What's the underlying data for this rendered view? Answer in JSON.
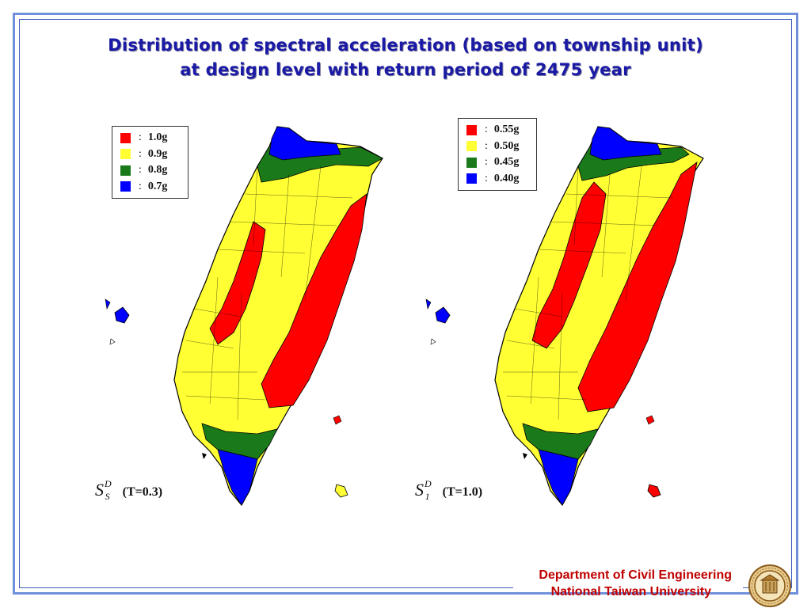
{
  "title": {
    "line1": "Distribution of spectral acceleration (based on township unit)",
    "line2": "at design level with return period of 2475 year"
  },
  "colors": {
    "red": "#ff0000",
    "yellow": "#ffff33",
    "green": "#1a7a1a",
    "blue": "#0000ff",
    "title": "#1a1aa6",
    "footer": "#c00000",
    "frame": "#6f8fdc"
  },
  "maps": [
    {
      "legend": [
        {
          "color": "red",
          "value": "1.0g"
        },
        {
          "color": "yellow",
          "value": "0.9g"
        },
        {
          "color": "green",
          "value": "0.8g"
        },
        {
          "color": "blue",
          "value": "0.7g"
        }
      ],
      "symbol": "S",
      "subscript": "S",
      "superscript": "D",
      "period": "(T=0.3)"
    },
    {
      "legend": [
        {
          "color": "red",
          "value": "0.55g"
        },
        {
          "color": "yellow",
          "value": "0.50g"
        },
        {
          "color": "green",
          "value": "0.45g"
        },
        {
          "color": "blue",
          "value": "0.40g"
        }
      ],
      "symbol": "S",
      "subscript": "1",
      "superscript": "D",
      "period": "(T=1.0)"
    }
  ],
  "footer": {
    "line1": "Department of Civil Engineering",
    "line2": "National Taiwan University"
  }
}
